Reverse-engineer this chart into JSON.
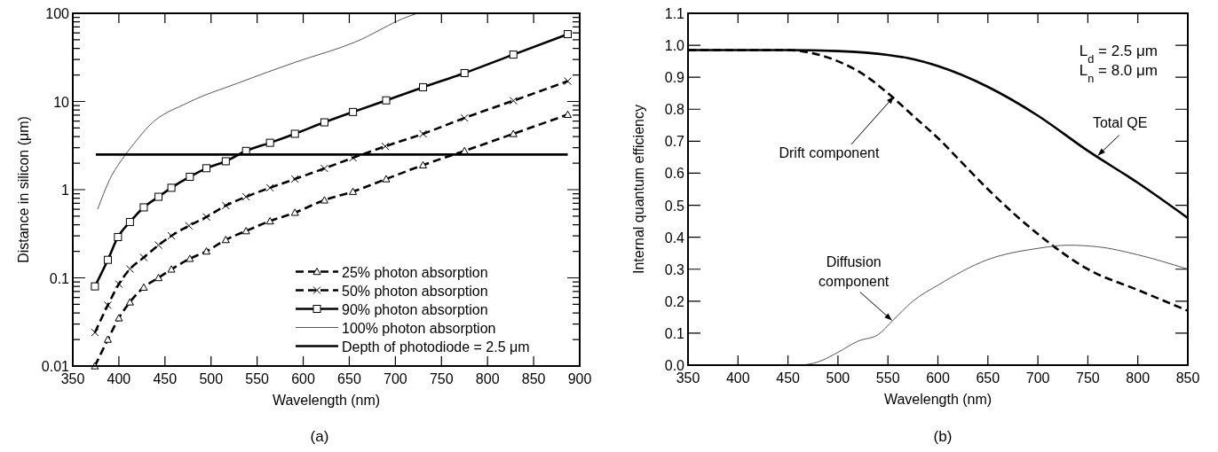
{
  "chart_data": [
    {
      "type": "line",
      "xlabel": "Wavelength (nm)",
      "ylabel": "Distance in silicon (μm)",
      "log": "y",
      "legend": "bottom right",
      "xlim": [
        350,
        900
      ],
      "xticks": [
        350,
        400,
        450,
        500,
        550,
        600,
        650,
        700,
        750,
        800,
        850,
        900
      ],
      "ylim": [
        0.01,
        100
      ],
      "yticks": [
        0.01,
        {
          "value": 0.02,
          "label": null
        },
        {
          "value": 0.03,
          "label": null
        },
        {
          "value": 0.04,
          "label": null
        },
        {
          "value": 0.05,
          "label": null
        },
        {
          "value": 0.06,
          "label": null
        },
        {
          "value": 0.07,
          "label": null
        },
        {
          "value": 0.08,
          "label": null
        },
        {
          "value": 0.09,
          "label": null
        },
        0.1,
        {
          "value": 0.2,
          "label": null
        },
        {
          "value": 0.3,
          "label": null
        },
        {
          "value": 0.4,
          "label": null
        },
        {
          "value": 0.5,
          "label": null
        },
        {
          "value": 0.6,
          "label": null
        },
        {
          "value": 0.7,
          "label": null
        },
        {
          "value": 0.8,
          "label": null
        },
        {
          "value": 0.9,
          "label": null
        },
        1,
        {
          "value": 2,
          "label": null
        },
        {
          "value": 3,
          "label": null
        },
        {
          "value": 4,
          "label": null
        },
        {
          "value": 5,
          "label": null
        },
        {
          "value": 6,
          "label": null
        },
        {
          "value": 7,
          "label": null
        },
        {
          "value": 8,
          "label": null
        },
        {
          "value": 9,
          "label": null
        },
        10,
        {
          "value": 20,
          "label": null
        },
        {
          "value": 30,
          "label": null
        },
        {
          "value": 40,
          "label": null
        },
        {
          "value": 50,
          "label": null
        },
        {
          "value": 60,
          "label": null
        },
        {
          "value": 70,
          "label": null
        },
        {
          "value": 80,
          "label": null
        },
        {
          "value": 90,
          "label": null
        },
        100
      ],
      "series": [
        {
          "name": "25% photon absorption",
          "color": "#000000",
          "line_style": "dashed",
          "marker": "triangle",
          "x": [
            374,
            388,
            400,
            412,
            427,
            443,
            457,
            477,
            495,
            516,
            538,
            564,
            591,
            623,
            654,
            690,
            730,
            775,
            828,
            887
          ],
          "values": [
            0.01,
            0.02,
            0.035,
            0.053,
            0.078,
            0.1,
            0.125,
            0.165,
            0.2,
            0.27,
            0.34,
            0.44,
            0.55,
            0.76,
            0.95,
            1.32,
            1.9,
            2.75,
            4.3,
            7.1
          ]
        },
        {
          "name": "50% photon absorption",
          "color": "#000000",
          "line_style": "dashed",
          "marker": "cross",
          "x": [
            374,
            388,
            400,
            412,
            427,
            443,
            457,
            476,
            495,
            516,
            538,
            564,
            591,
            623,
            654,
            689,
            730,
            775,
            828,
            887
          ],
          "values": [
            0.024,
            0.049,
            0.085,
            0.126,
            0.17,
            0.235,
            0.3,
            0.39,
            0.49,
            0.66,
            0.83,
            1.05,
            1.32,
            1.74,
            2.3,
            3.1,
            4.3,
            6.5,
            10.2,
            17
          ]
        },
        {
          "name": "90% photon absorption",
          "color": "#000000",
          "line_style": "solid",
          "marker": "square",
          "x": [
            374,
            388,
            399,
            412,
            427,
            443,
            457,
            477,
            495,
            516,
            538,
            564,
            591,
            623,
            654,
            690,
            730,
            775,
            828,
            887
          ],
          "values": [
            0.08,
            0.16,
            0.29,
            0.43,
            0.63,
            0.83,
            1.05,
            1.4,
            1.75,
            2.1,
            2.75,
            3.4,
            4.3,
            5.8,
            7.6,
            10.3,
            14.5,
            21,
            34,
            58
          ]
        },
        {
          "name": "100% photon absorption",
          "color": "#555555",
          "line_style": "solid",
          "marker": "none",
          "x": [
            377,
            390,
            406,
            419,
            432,
            476,
            528,
            592,
            656,
            714,
            724
          ],
          "values": [
            0.6,
            1.3,
            2.4,
            3.6,
            5.2,
            9.8,
            16,
            28,
            47,
            92,
            100
          ]
        },
        {
          "name": "Depth of photodiode = 2.5 μm",
          "color": "#000000",
          "line_style": "solid",
          "marker": "none",
          "x": [
            375,
            887
          ],
          "values": [
            2.5,
            2.5
          ]
        }
      ],
      "annotations": [
        "(a)"
      ]
    },
    {
      "type": "line",
      "xlabel": "Wavelength (nm)",
      "ylabel": "Internal quantum efficiency",
      "xlim": [
        350,
        850
      ],
      "xticks": [
        350,
        400,
        450,
        500,
        550,
        600,
        650,
        700,
        750,
        800,
        850
      ],
      "ylim": [
        0,
        1.1
      ],
      "yticks": [
        {
          "value": 0,
          "label": "0.0"
        },
        0.1,
        0.2,
        0.3,
        0.4,
        0.5,
        0.6,
        0.7,
        0.8,
        0.9,
        {
          "value": 1,
          "label": "1.0"
        },
        1.1
      ],
      "series": [
        {
          "color": "#000000",
          "line_style": "solid",
          "marker": "none",
          "x": [
            350,
            450,
            500,
            550,
            570,
            600,
            650,
            700,
            750,
            800,
            850
          ],
          "values": [
            0.985,
            0.985,
            0.982,
            0.97,
            0.96,
            0.935,
            0.87,
            0.78,
            0.67,
            0.57,
            0.46
          ]
        },
        {
          "color": "#000000",
          "line_style": "dashed",
          "marker": "none",
          "x": [
            350,
            450,
            475,
            500,
            525,
            550,
            575,
            600,
            625,
            650,
            700,
            750,
            800,
            850
          ],
          "values": [
            0.985,
            0.985,
            0.975,
            0.95,
            0.91,
            0.85,
            0.78,
            0.71,
            0.63,
            0.55,
            0.41,
            0.3,
            0.235,
            0.17
          ]
        },
        {
          "color": "#555555",
          "line_style": "solid",
          "marker": "none",
          "x": [
            350,
            460,
            480,
            500,
            520,
            540,
            555,
            575,
            600,
            650,
            700,
            730,
            760,
            800,
            850
          ],
          "values": [
            0,
            0,
            0.01,
            0.04,
            0.075,
            0.095,
            0.14,
            0.2,
            0.25,
            0.33,
            0.365,
            0.375,
            0.37,
            0.345,
            0.3
          ]
        }
      ],
      "annotations": [
        "L$_{d}$ = 2.5 μm",
        "L$_{n}$ = 8.0 μm",
        {
          "text": "Drift component",
          "x": 556,
          "y": 0.84
        },
        {
          "text": "Diffusion\ncomponent",
          "x": 554,
          "y": 0.14
        },
        {
          "text": "Total QE",
          "x": 760,
          "y": 0.655
        },
        "(b)"
      ]
    }
  ]
}
